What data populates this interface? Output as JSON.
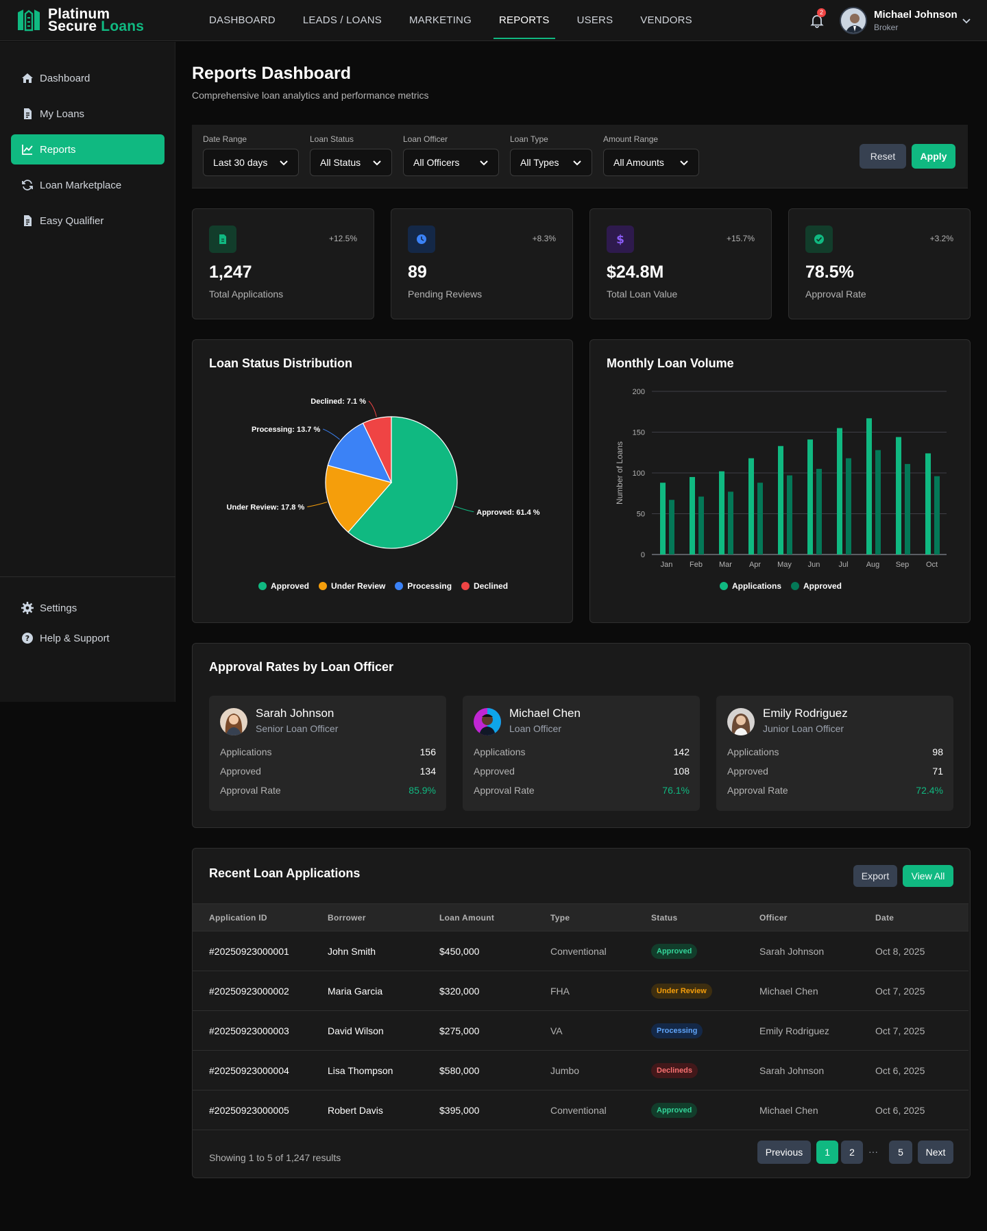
{
  "brand": {
    "line1": "Platinum",
    "line2a": "Secure",
    "line2b": "Loans"
  },
  "nav": [
    "DASHBOARD",
    "LEADS / LOANS",
    "MARKETING",
    "REPORTS",
    "USERS",
    "VENDORS"
  ],
  "notifications": {
    "count": "2"
  },
  "user": {
    "name": "Michael Johnson",
    "role": "Broker"
  },
  "sidebar": {
    "items": [
      {
        "label": "Dashboard",
        "icon": "home-icon"
      },
      {
        "label": "My Loans",
        "icon": "file-icon"
      },
      {
        "label": "Reports",
        "icon": "chart-line-icon"
      },
      {
        "label": "Loan Marketplace",
        "icon": "refresh-icon"
      },
      {
        "label": "Easy Qualifier",
        "icon": "file-icon"
      }
    ],
    "bottom": [
      {
        "label": "Settings",
        "icon": "gear-icon"
      },
      {
        "label": "Help & Support",
        "icon": "help-icon"
      }
    ]
  },
  "page": {
    "title": "Reports Dashboard",
    "subtitle": "Comprehensive loan analytics and performance metrics"
  },
  "filters": [
    {
      "label": "Date Range",
      "value": "Last 30 days"
    },
    {
      "label": "Loan Status",
      "value": "All Status"
    },
    {
      "label": "Loan Officer",
      "value": "All Officers"
    },
    {
      "label": "Loan Type",
      "value": "All Types"
    },
    {
      "label": "Amount Range",
      "value": "All Amounts"
    }
  ],
  "filter_actions": {
    "reset": "Reset",
    "apply": "Apply"
  },
  "stats": [
    {
      "value": "1,247",
      "label": "Total Applications",
      "change": "+12.5%",
      "color": "#10b981"
    },
    {
      "value": "89",
      "label": "Pending Reviews",
      "change": "+8.3%",
      "color": "#3b82f6"
    },
    {
      "value": "$24.8M",
      "label": "Total Loan Value",
      "change": "+15.7%",
      "color": "#8b5cf6"
    },
    {
      "value": "78.5%",
      "label": "Approval Rate",
      "change": "+3.2%",
      "color": "#10b981"
    }
  ],
  "pie_card": {
    "title": "Loan Status Distribution"
  },
  "bar_card": {
    "title": "Monthly Loan Volume"
  },
  "chart_data": [
    {
      "type": "pie",
      "title": "Loan Status Distribution",
      "slices": [
        {
          "name": "Approved",
          "value": 61.4,
          "label": "Approved: 61.4 %",
          "color": "#10b981"
        },
        {
          "name": "Under Review",
          "value": 17.8,
          "label": "Under Review: 17.8 %",
          "color": "#f59e0b"
        },
        {
          "name": "Processing",
          "value": 13.7,
          "label": "Processing: 13.7 %",
          "color": "#3b82f6"
        },
        {
          "name": "Declined",
          "value": 7.1,
          "label": "Declined: 7.1 %",
          "color": "#ef4444"
        }
      ],
      "legend_position": "bottom"
    },
    {
      "type": "bar",
      "title": "Monthly Loan Volume",
      "categories": [
        "Jan",
        "Feb",
        "Mar",
        "Apr",
        "May",
        "Jun",
        "Jul",
        "Aug",
        "Sep",
        "Oct"
      ],
      "series": [
        {
          "name": "Applications",
          "values": [
            88,
            95,
            102,
            118,
            133,
            141,
            155,
            167,
            144,
            124
          ],
          "color": "#10b981"
        },
        {
          "name": "Approved",
          "values": [
            67,
            71,
            77,
            88,
            97,
            105,
            118,
            128,
            111,
            96
          ],
          "color": "#047857"
        }
      ],
      "ylabel": "Number of Loans",
      "yticks": [
        0,
        50,
        100,
        150,
        200
      ],
      "ylim": [
        0,
        200
      ],
      "grid": true,
      "legend_position": "bottom"
    }
  ],
  "officers_card": {
    "title": "Approval Rates by Loan Officer"
  },
  "officers": [
    {
      "name": "Sarah Johnson",
      "role": "Senior Loan Officer",
      "applications": "156",
      "approved": "134",
      "rate": "85.9%"
    },
    {
      "name": "Michael Chen",
      "role": "Loan Officer",
      "applications": "142",
      "approved": "108",
      "rate": "76.1%"
    },
    {
      "name": "Emily Rodriguez",
      "role": "Junior Loan Officer",
      "applications": "98",
      "approved": "71",
      "rate": "72.4%"
    }
  ],
  "officer_labels": {
    "applications": "Applications",
    "approved": "Approved",
    "rate": "Approval Rate"
  },
  "recent": {
    "title": "Recent Loan Applications",
    "export": "Export",
    "view_all": "View All",
    "columns": [
      "Application ID",
      "Borrower",
      "Loan Amount",
      "Type",
      "Status",
      "Officer",
      "Date"
    ],
    "rows": [
      {
        "id": "#20250923000001",
        "borrower": "John Smith",
        "amount": "$450,000",
        "type": "Conventional",
        "status": "Approved",
        "status_kind": "approved",
        "officer": "Sarah Johnson",
        "date": "Oct 8, 2025"
      },
      {
        "id": "#20250923000002",
        "borrower": "Maria Garcia",
        "amount": "$320,000",
        "type": "FHA",
        "status": "Under Review",
        "status_kind": "review",
        "officer": "Michael Chen",
        "date": "Oct 7, 2025"
      },
      {
        "id": "#20250923000003",
        "borrower": "David Wilson",
        "amount": "$275,000",
        "type": "VA",
        "status": "Processing",
        "status_kind": "processing",
        "officer": "Emily Rodriguez",
        "date": "Oct 7, 2025"
      },
      {
        "id": "#20250923000004",
        "borrower": "Lisa Thompson",
        "amount": "$580,000",
        "type": "Jumbo",
        "status": "Declineds",
        "status_kind": "declined",
        "officer": "Sarah Johnson",
        "date": "Oct 6, 2025"
      },
      {
        "id": "#20250923000005",
        "borrower": "Robert Davis",
        "amount": "$395,000",
        "type": "Conventional",
        "status": "Approved",
        "status_kind": "approved",
        "officer": "Michael Chen",
        "date": "Oct 6, 2025"
      }
    ],
    "footer": "Showing 1 to 5 of 1,247 results",
    "pagination": {
      "prev": "Previous",
      "pages": [
        "1",
        "2",
        "5"
      ],
      "ellipsis": "···",
      "next": "Next"
    }
  }
}
